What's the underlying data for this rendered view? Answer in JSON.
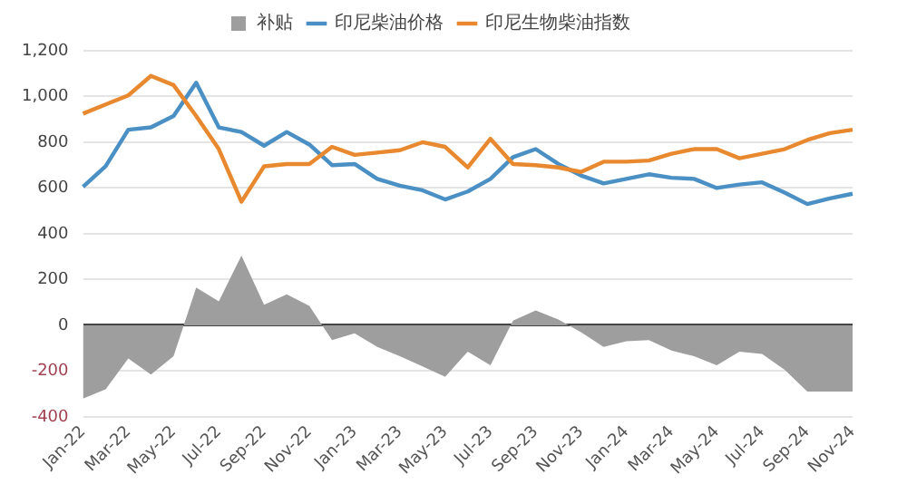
{
  "chart_data": {
    "type": "line",
    "categories": [
      "Jan-22",
      null,
      "Mar-22",
      null,
      "May-22",
      null,
      "Jul-22",
      null,
      "Sep-22",
      null,
      "Nov-22",
      null,
      "Jan-23",
      null,
      "Mar-23",
      null,
      "May-23",
      null,
      "Jul-23",
      null,
      "Sep-23",
      null,
      "Nov-23",
      null,
      "Jan-24",
      null,
      "Mar-24",
      null,
      "May-24",
      null,
      "Jul-24",
      null,
      "Sep-24",
      null,
      "Nov-24"
    ],
    "series": [
      {
        "name": "补贴",
        "type": "area",
        "color": "#9e9e9e",
        "values": [
          -320,
          -280,
          -145,
          -215,
          -135,
          165,
          105,
          305,
          90,
          135,
          85,
          -65,
          -35,
          -95,
          -135,
          -180,
          -225,
          -115,
          -175,
          20,
          65,
          25,
          -30,
          -95,
          -70,
          -65,
          -110,
          -135,
          -175,
          -115,
          -125,
          -195,
          -290,
          -290,
          -290
        ]
      },
      {
        "name": "印尼柴油价格",
        "type": "line",
        "color": "#4a90c4",
        "values": [
          605,
          695,
          855,
          865,
          915,
          1060,
          865,
          845,
          785,
          845,
          790,
          700,
          705,
          640,
          610,
          590,
          550,
          585,
          640,
          735,
          770,
          705,
          655,
          620,
          640,
          660,
          645,
          640,
          600,
          615,
          625,
          580,
          530,
          555,
          575
        ]
      },
      {
        "name": "印尼生物柴油指数",
        "type": "line",
        "color": "#e8892f",
        "values": [
          925,
          965,
          1005,
          1090,
          1050,
          915,
          770,
          540,
          695,
          705,
          705,
          780,
          745,
          755,
          765,
          800,
          780,
          690,
          815,
          705,
          700,
          690,
          670,
          715,
          715,
          720,
          750,
          770,
          770,
          730,
          750,
          770,
          810,
          840,
          855
        ]
      }
    ],
    "ylim": [
      -400,
      1200
    ],
    "yticks": [
      -400,
      -200,
      0,
      200,
      400,
      600,
      800,
      {
        "value": 1000,
        "label": "1,000"
      },
      {
        "value": 1200,
        "label": "1,200"
      }
    ],
    "grid": "y",
    "legend": "top",
    "marker": "none",
    "line_style": "solid"
  }
}
